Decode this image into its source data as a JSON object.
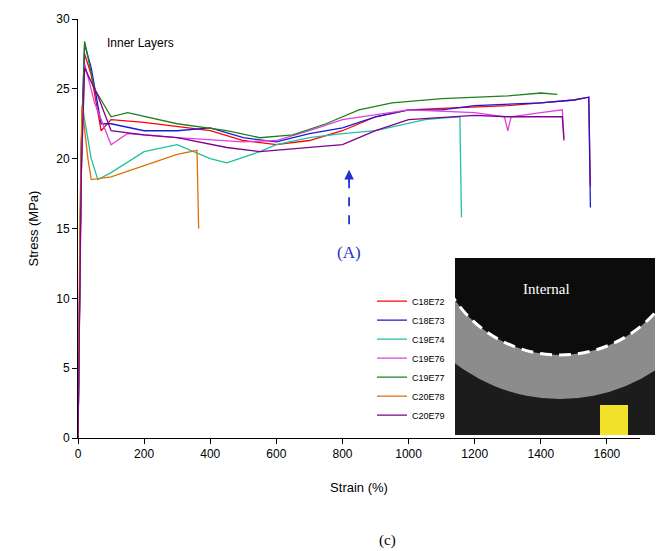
{
  "chart_data": {
    "type": "line",
    "xlabel": "Strain (%)",
    "ylabel": "Stress (MPa)",
    "caption": "(c)",
    "xlim": [
      0,
      1700
    ],
    "xticks": [
      0,
      200,
      400,
      600,
      800,
      1000,
      1200,
      1400,
      1600
    ],
    "ylim": [
      0,
      30
    ],
    "yticks": [
      0,
      5,
      10,
      15,
      20,
      25,
      30
    ],
    "grid": false,
    "legend": "lower right",
    "series": [
      {
        "name": "C18E72",
        "color": "#ff0000",
        "x": [
          0,
          10,
          20,
          40,
          70,
          100,
          200,
          300,
          400,
          500,
          600,
          700,
          800,
          900,
          1000,
          1100,
          1200,
          1300,
          1400,
          1500,
          1545,
          1550
        ],
        "values": [
          0,
          20,
          27.5,
          26,
          22,
          22.8,
          22.6,
          22.3,
          22,
          21.3,
          21,
          21.3,
          22,
          23,
          23.5,
          23.6,
          23.7,
          23.8,
          24,
          24.2,
          24.4,
          18
        ]
      },
      {
        "name": "C18E73",
        "color": "#1a1ad8",
        "x": [
          0,
          10,
          20,
          40,
          70,
          100,
          200,
          300,
          400,
          500,
          600,
          700,
          800,
          900,
          1000,
          1100,
          1200,
          1300,
          1400,
          1500,
          1545,
          1550
        ],
        "values": [
          0,
          21,
          28.2,
          26.5,
          22.5,
          22.5,
          22,
          22,
          22.2,
          21.5,
          21.2,
          21.8,
          22.2,
          23,
          23.5,
          23.5,
          23.8,
          23.9,
          24,
          24.2,
          24.4,
          16.5
        ]
      },
      {
        "name": "C19E74",
        "color": "#20c0a0",
        "x": [
          0,
          8,
          15,
          40,
          60,
          100,
          200,
          300,
          400,
          450,
          550,
          600,
          700,
          800,
          900,
          1000,
          1050,
          1100,
          1155,
          1160
        ],
        "values": [
          0,
          17,
          23.5,
          20,
          18.5,
          19,
          20.5,
          21,
          20,
          19.7,
          20.5,
          21,
          21.5,
          21.8,
          22,
          22.5,
          22.8,
          22.9,
          23,
          15.8
        ]
      },
      {
        "name": "C19E76",
        "color": "#e040e0",
        "x": [
          0,
          10,
          20,
          50,
          100,
          150,
          300,
          500,
          600,
          700,
          800,
          1000,
          1200,
          1290,
          1300,
          1310,
          1400,
          1465,
          1470
        ],
        "values": [
          0,
          19,
          26.8,
          24,
          21,
          21.8,
          21.5,
          21.2,
          21.3,
          22,
          22.8,
          23.5,
          23.3,
          23,
          22,
          23,
          23.3,
          23.5,
          21.5
        ]
      },
      {
        "name": "C19E77",
        "color": "#208020",
        "x": [
          0,
          10,
          20,
          50,
          100,
          150,
          300,
          450,
          550,
          650,
          750,
          850,
          950,
          1100,
          1300,
          1400,
          1450
        ],
        "values": [
          0,
          21,
          28.4,
          25,
          23,
          23.3,
          22.5,
          22,
          21.5,
          21.7,
          22.5,
          23.5,
          24,
          24.3,
          24.5,
          24.7,
          24.6
        ]
      },
      {
        "name": "C20E78",
        "color": "#e07000",
        "x": [
          0,
          6,
          12,
          30,
          40,
          100,
          200,
          300,
          360,
          365
        ],
        "values": [
          0,
          16,
          23.8,
          20,
          18.5,
          18.7,
          19.5,
          20.3,
          20.6,
          15
        ]
      },
      {
        "name": "C20E79",
        "color": "#800090",
        "x": [
          0,
          10,
          20,
          60,
          100,
          200,
          300,
          450,
          550,
          700,
          800,
          900,
          1000,
          1200,
          1300,
          1465,
          1470
        ],
        "values": [
          0,
          19,
          26.5,
          24.5,
          22,
          21.7,
          21.5,
          20.8,
          20.5,
          20.8,
          21,
          22,
          22.8,
          23.1,
          23,
          23,
          21.3
        ]
      }
    ],
    "annotations": [
      {
        "text": "Inner Layers",
        "x": 82,
        "y": 28.3
      },
      {
        "text": "(A)",
        "x": 820,
        "y": 13.3,
        "color": "#2233cc",
        "line_style": "dashed",
        "arrow": {
          "x": 820,
          "y_start": 15.3,
          "y_end": 19.2
        }
      }
    ],
    "inset": {
      "label": "Internal"
    }
  }
}
